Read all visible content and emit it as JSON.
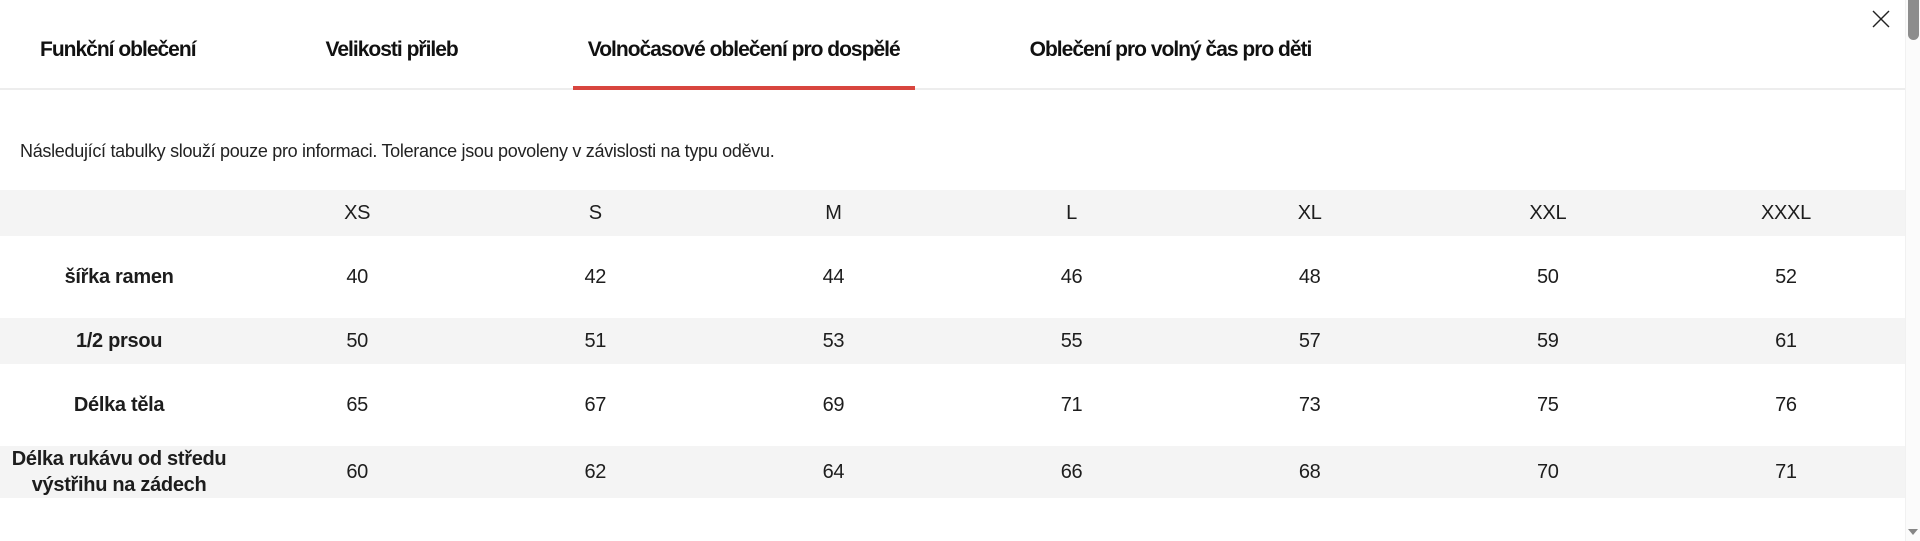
{
  "colors": {
    "accent_red": "#d8453e",
    "stripe_gray": "#f4f4f4",
    "text": "#1d1d1d",
    "scrollbar_thumb": "#8d8d8d"
  },
  "icons": {
    "close": "✕",
    "scroll_down_arrow": "▼"
  },
  "tabs": [
    {
      "id": "funkcni-obleceni",
      "label": "Funkční oblečení",
      "active": false
    },
    {
      "id": "velikosti-prileb",
      "label": "Velikosti přileb",
      "active": false
    },
    {
      "id": "volnocasove-obleceni-pro-dospele",
      "label": "Volnočasové oblečení pro dospělé",
      "active": true
    },
    {
      "id": "obleceni-pro-volny-cas-pro-deti",
      "label": "Oblečení pro volný čas pro děti",
      "active": false
    }
  ],
  "note": "Následující tabulky slouží pouze pro informaci. Tolerance jsou povoleny v závislosti na typu oděvu.",
  "size_table": {
    "type": "table",
    "columns": [
      "",
      "XS",
      "S",
      "M",
      "L",
      "XL",
      "XXL",
      "XXXL"
    ],
    "rows": [
      {
        "label": "šířka ramen",
        "values": [
          "40",
          "42",
          "44",
          "46",
          "48",
          "50",
          "52"
        ]
      },
      {
        "label": "1/2 prsou",
        "values": [
          "50",
          "51",
          "53",
          "55",
          "57",
          "59",
          "61"
        ]
      },
      {
        "label": "Délka těla",
        "values": [
          "65",
          "67",
          "69",
          "71",
          "73",
          "75",
          "76"
        ]
      },
      {
        "label": "Délka rukávu od středu výstřihu na zádech",
        "values": [
          "60",
          "62",
          "64",
          "66",
          "68",
          "70",
          "71"
        ]
      }
    ]
  }
}
